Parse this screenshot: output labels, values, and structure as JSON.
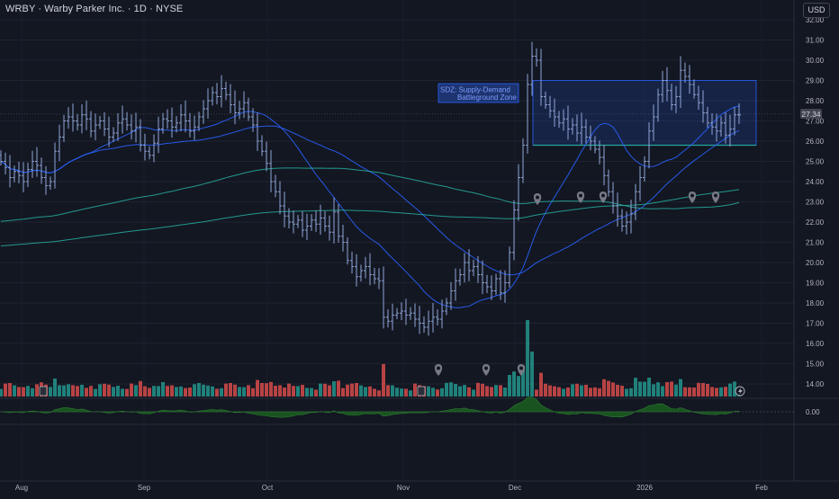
{
  "header": {
    "title": "WRBY · Warby Parker Inc. · 1D · NYSE",
    "currency": "USD"
  },
  "chart_data": {
    "type": "candlestick",
    "symbol": "WRBY",
    "y_axis": {
      "ticks": [
        "32.00",
        "31.00",
        "30.00",
        "29.00",
        "28.00",
        "27.00",
        "26.00",
        "25.00",
        "24.00",
        "23.00",
        "22.00",
        "21.00",
        "20.00",
        "19.00",
        "18.00",
        "17.00",
        "16.00",
        "15.00",
        "14.00"
      ],
      "range": [
        13.6,
        32.0
      ]
    },
    "x_axis": {
      "labels": [
        "Aug",
        "Sep",
        "Oct",
        "Nov",
        "Dec",
        "2026",
        "Feb"
      ]
    },
    "last_price": "27.34",
    "indicator_axis": {
      "ticks": [
        "0.00"
      ]
    },
    "annotation": {
      "label_line1": "SDZ: Supply-Demand",
      "label_line2": "Battleground Zone",
      "zone_top": 29.0,
      "zone_bottom": 25.8
    },
    "closes": [
      25.0,
      24.7,
      24.2,
      24.5,
      24.3,
      24.0,
      24.6,
      25.0,
      24.8,
      24.2,
      23.8,
      24.0,
      25.5,
      26.2,
      27.0,
      27.2,
      27.0,
      26.8,
      27.3,
      27.1,
      26.5,
      26.8,
      27.0,
      26.6,
      26.2,
      26.4,
      26.9,
      27.1,
      26.8,
      26.5,
      26.7,
      25.8,
      25.5,
      25.3,
      25.9,
      26.6,
      27.1,
      27.0,
      26.7,
      26.9,
      27.3,
      27.0,
      26.5,
      26.7,
      27.2,
      27.6,
      28.0,
      28.4,
      28.2,
      28.6,
      28.3,
      27.8,
      27.4,
      27.6,
      27.9,
      27.2,
      26.8,
      26.0,
      25.5,
      24.9,
      24.0,
      23.5,
      22.8,
      22.3,
      22.0,
      21.9,
      22.1,
      21.6,
      21.8,
      22.1,
      21.9,
      22.2,
      21.8,
      21.5,
      22.5,
      21.3,
      21.0,
      20.1,
      19.8,
      19.3,
      19.6,
      19.8,
      19.4,
      19.2,
      19.1,
      17.3,
      17.1,
      17.4,
      17.5,
      17.6,
      17.4,
      17.5,
      17.2,
      17.0,
      16.8,
      17.1,
      17.3,
      17.2,
      17.6,
      18.0,
      18.6,
      19.1,
      19.4,
      20.0,
      19.6,
      19.8,
      19.4,
      19.0,
      18.8,
      18.6,
      19.2,
      18.5,
      19.0,
      20.5,
      22.6,
      24.2,
      25.8,
      28.8,
      30.2,
      30.0,
      28.2,
      27.8,
      27.5,
      27.2,
      26.9,
      27.1,
      26.6,
      26.8,
      26.4,
      26.7,
      26.2,
      26.0,
      25.6,
      25.2,
      24.3,
      23.5,
      22.8,
      22.3,
      21.8,
      22.0,
      22.4,
      23.5,
      24.2,
      25.0,
      26.5,
      27.2,
      28.3,
      29.0,
      28.5,
      27.8,
      28.2,
      29.5,
      29.2,
      28.8,
      28.3,
      27.9,
      27.4,
      26.9,
      26.7,
      26.5,
      26.9,
      26.3,
      26.6,
      27.3,
      27.3
    ],
    "moving_averages": [
      {
        "period": 20,
        "color": "#2962ff"
      },
      {
        "period": 50,
        "color": "#2962ff"
      },
      {
        "period": 100,
        "color": "#26a69a"
      },
      {
        "period": 200,
        "color": "#26a69a"
      }
    ],
    "volume_colors": {
      "up": "#26a69a",
      "down": "#ef5350"
    },
    "candle_color": "#8fa4d6"
  }
}
